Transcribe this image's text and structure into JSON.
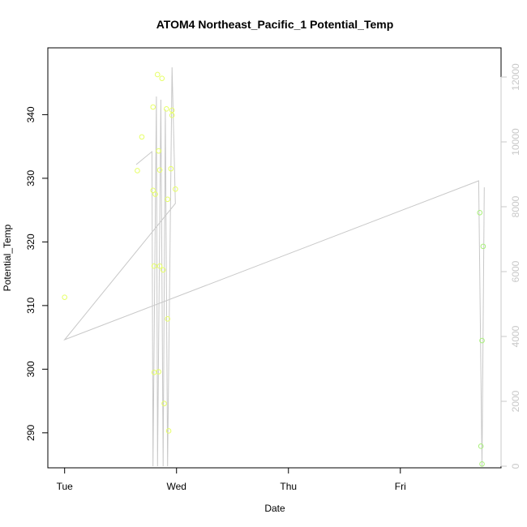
{
  "chart_data": {
    "type": "scatter",
    "title": "ATOM4 Northeast_Pacific_1 Potential_Temp",
    "xlabel": "Date",
    "ylabel": "Potential_Temp",
    "x_ticks": [
      {
        "label": "Tue",
        "day": 0
      },
      {
        "label": "Wed",
        "day": 1
      },
      {
        "label": "Thu",
        "day": 2
      },
      {
        "label": "Fri",
        "day": 3
      }
    ],
    "xlim": [
      -0.15,
      3.9
    ],
    "ylim": [
      284.5,
      350.5
    ],
    "y_ticks": [
      290,
      300,
      310,
      320,
      330,
      340
    ],
    "y2lim": [
      -50,
      12900
    ],
    "y2_ticks": [
      0,
      2000,
      4000,
      6000,
      8000,
      10000,
      12000
    ],
    "grid": false,
    "colors": {
      "points_early": "#e6ff66",
      "points_late": "#a8f07a",
      "line": "#c8c8c8",
      "axis": "#000000",
      "right_axis": "#c8c8c8"
    },
    "series": [
      {
        "values": [
          {
            "day": 0.0,
            "y": 311.3
          },
          {
            "day": 0.65,
            "y": 331.2
          },
          {
            "day": 0.69,
            "y": 336.5
          },
          {
            "day": 0.79,
            "y": 341.2
          },
          {
            "day": 0.79,
            "y": 328.1
          },
          {
            "day": 0.8,
            "y": 316.2
          },
          {
            "day": 0.8,
            "y": 299.5
          },
          {
            "day": 0.81,
            "y": 327.5
          },
          {
            "day": 0.83,
            "y": 346.3
          },
          {
            "day": 0.84,
            "y": 334.3
          },
          {
            "day": 0.84,
            "y": 299.6
          },
          {
            "day": 0.85,
            "y": 331.3
          },
          {
            "day": 0.85,
            "y": 316.2
          },
          {
            "day": 0.87,
            "y": 345.7
          },
          {
            "day": 0.88,
            "y": 315.6
          },
          {
            "day": 0.89,
            "y": 294.6
          },
          {
            "day": 0.91,
            "y": 340.9
          },
          {
            "day": 0.92,
            "y": 326.7
          },
          {
            "day": 0.92,
            "y": 307.9
          },
          {
            "day": 0.93,
            "y": 290.3
          },
          {
            "day": 0.95,
            "y": 331.5
          },
          {
            "day": 0.96,
            "y": 339.9
          },
          {
            "day": 0.96,
            "y": 340.7
          },
          {
            "day": 0.99,
            "y": 328.3
          }
        ]
      },
      {
        "values": [
          {
            "day": 3.71,
            "y": 324.6
          },
          {
            "day": 3.72,
            "y": 287.9
          },
          {
            "day": 3.73,
            "y": 285.1
          },
          {
            "day": 3.73,
            "y": 304.5
          },
          {
            "day": 3.74,
            "y": 319.3
          }
        ]
      },
      {
        "axis": "right",
        "style": "line",
        "values": [
          {
            "day": 0.64,
            "y2": 9300
          },
          {
            "day": 0.78,
            "y2": 9700
          },
          {
            "day": 0.79,
            "y2": 0
          },
          {
            "day": 0.82,
            "y2": 11400
          },
          {
            "day": 0.83,
            "y2": 0
          },
          {
            "day": 0.86,
            "y2": 11300
          },
          {
            "day": 0.88,
            "y2": 0
          },
          {
            "day": 0.9,
            "y2": 11000
          },
          {
            "day": 0.92,
            "y2": 0
          },
          {
            "day": 0.96,
            "y2": 12300
          },
          {
            "day": 0.99,
            "y2": 8100
          },
          {
            "day": 0.0,
            "y2": 3900
          },
          {
            "day": 3.7,
            "y2": 8800
          },
          {
            "day": 3.73,
            "y2": 0
          },
          {
            "day": 3.75,
            "y2": 8600
          }
        ]
      }
    ]
  }
}
